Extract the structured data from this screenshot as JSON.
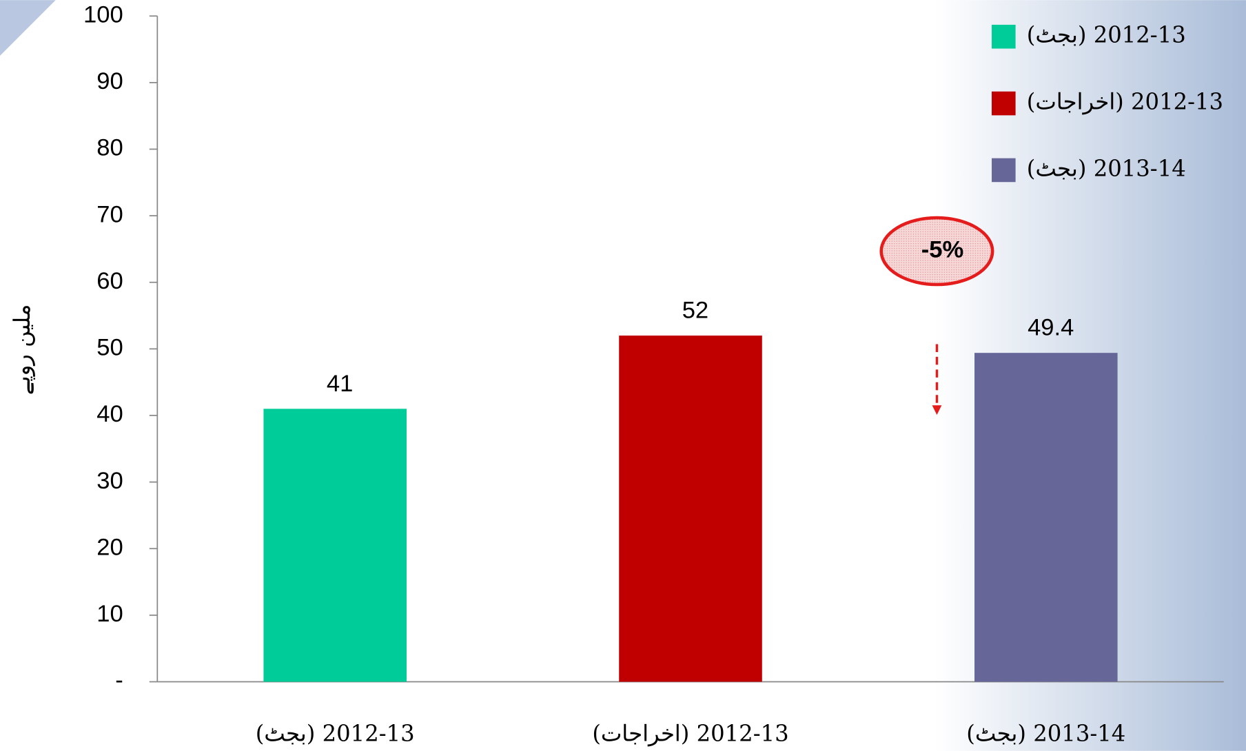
{
  "chart_data": {
    "type": "bar",
    "categories": [
      "2012-13 (بجٹ)",
      "2012-13 (اخراجات)",
      "2013-14 (بجٹ)"
    ],
    "values": [
      41,
      52,
      49.4
    ],
    "colors": [
      "#00cc99",
      "#c00000",
      "#666699"
    ],
    "y_label": "ملین روپے",
    "annotation": "-5%",
    "ylim": [
      0,
      100
    ],
    "yticks": [
      {
        "value": 0,
        "label": "-"
      },
      10,
      20,
      30,
      40,
      50,
      60,
      70,
      80,
      90,
      100
    ],
    "legend": "top-right"
  }
}
